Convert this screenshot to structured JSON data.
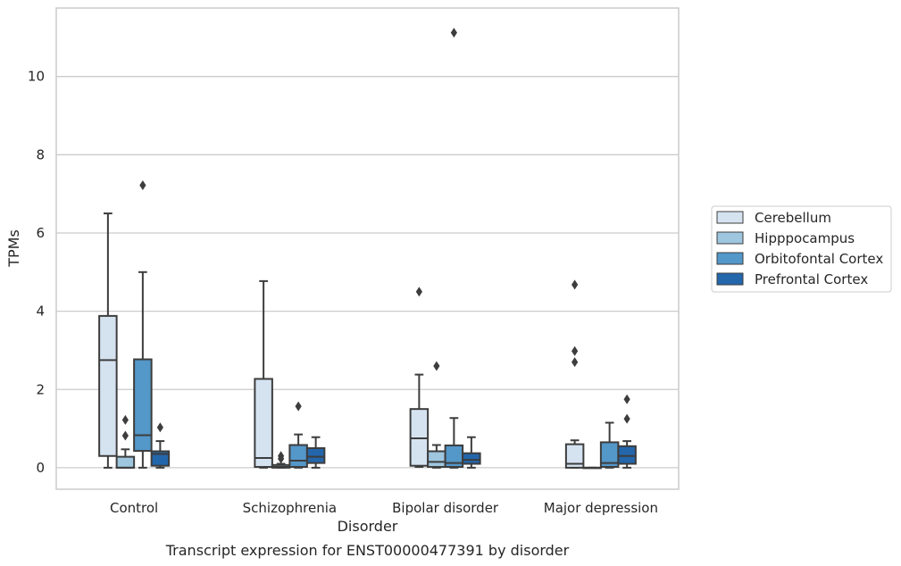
{
  "chart_data": {
    "type": "box",
    "title": "",
    "caption": "Transcript expression for ENST00000477391 by disorder",
    "xlabel": "Disorder",
    "ylabel": "TPMs",
    "ylim": [
      -0.55,
      11.75
    ],
    "yticks": [
      0,
      2,
      4,
      6,
      8,
      10
    ],
    "grid": "horizontal",
    "legend_position": "right",
    "categories": [
      "Control",
      "Schizophrenia",
      "Bipolar disorder",
      "Major depression"
    ],
    "series": [
      {
        "name": "Cerebellum",
        "color": "#d5e3f1",
        "boxes": [
          {
            "whislo": 0.0,
            "q1": 0.3,
            "med": 2.75,
            "q3": 3.88,
            "whishi": 6.5,
            "fliers": []
          },
          {
            "whislo": 0.0,
            "q1": 0.02,
            "med": 0.25,
            "q3": 2.27,
            "whishi": 4.77,
            "fliers": []
          },
          {
            "whislo": 0.02,
            "q1": 0.05,
            "med": 0.75,
            "q3": 1.5,
            "whishi": 2.38,
            "fliers": [
              4.5
            ]
          },
          {
            "whislo": 0.0,
            "q1": 0.0,
            "med": 0.1,
            "q3": 0.6,
            "whishi": 0.7,
            "fliers": [
              2.7,
              2.98,
              4.68
            ]
          }
        ]
      },
      {
        "name": "Hipppocampus",
        "color": "#9ec6df",
        "boxes": [
          {
            "whislo": 0.0,
            "q1": 0.0,
            "med": 0.0,
            "q3": 0.28,
            "whishi": 0.47,
            "fliers": [
              0.82,
              1.22
            ]
          },
          {
            "whislo": 0.0,
            "q1": 0.0,
            "med": 0.02,
            "q3": 0.07,
            "whishi": 0.1,
            "fliers": [
              0.23,
              0.3
            ]
          },
          {
            "whislo": 0.0,
            "q1": 0.02,
            "med": 0.15,
            "q3": 0.42,
            "whishi": 0.58,
            "fliers": [
              2.6
            ]
          },
          {
            "whislo": 0.0,
            "q1": 0.0,
            "med": 0.0,
            "q3": 0.0,
            "whishi": 0.0,
            "fliers": []
          }
        ]
      },
      {
        "name": "Orbitofontal Cortex",
        "color": "#5497c9",
        "boxes": [
          {
            "whislo": 0.0,
            "q1": 0.43,
            "med": 0.83,
            "q3": 2.77,
            "whishi": 5.0,
            "fliers": [
              7.22
            ]
          },
          {
            "whislo": 0.0,
            "q1": 0.02,
            "med": 0.18,
            "q3": 0.58,
            "whishi": 0.85,
            "fliers": [
              1.57
            ]
          },
          {
            "whislo": 0.0,
            "q1": 0.02,
            "med": 0.12,
            "q3": 0.57,
            "whishi": 1.27,
            "fliers": [
              11.12
            ]
          },
          {
            "whislo": 0.0,
            "q1": 0.02,
            "med": 0.12,
            "q3": 0.65,
            "whishi": 1.15,
            "fliers": []
          }
        ]
      },
      {
        "name": "Prefrontal Cortex",
        "color": "#2366ab",
        "boxes": [
          {
            "whislo": 0.0,
            "q1": 0.05,
            "med": 0.35,
            "q3": 0.42,
            "whishi": 0.68,
            "fliers": [
              1.03
            ]
          },
          {
            "whislo": 0.0,
            "q1": 0.12,
            "med": 0.28,
            "q3": 0.5,
            "whishi": 0.78,
            "fliers": []
          },
          {
            "whislo": 0.0,
            "q1": 0.1,
            "med": 0.2,
            "q3": 0.37,
            "whishi": 0.78,
            "fliers": []
          },
          {
            "whislo": 0.0,
            "q1": 0.1,
            "med": 0.3,
            "q3": 0.55,
            "whishi": 0.68,
            "fliers": [
              1.25,
              1.75
            ]
          }
        ]
      }
    ]
  }
}
